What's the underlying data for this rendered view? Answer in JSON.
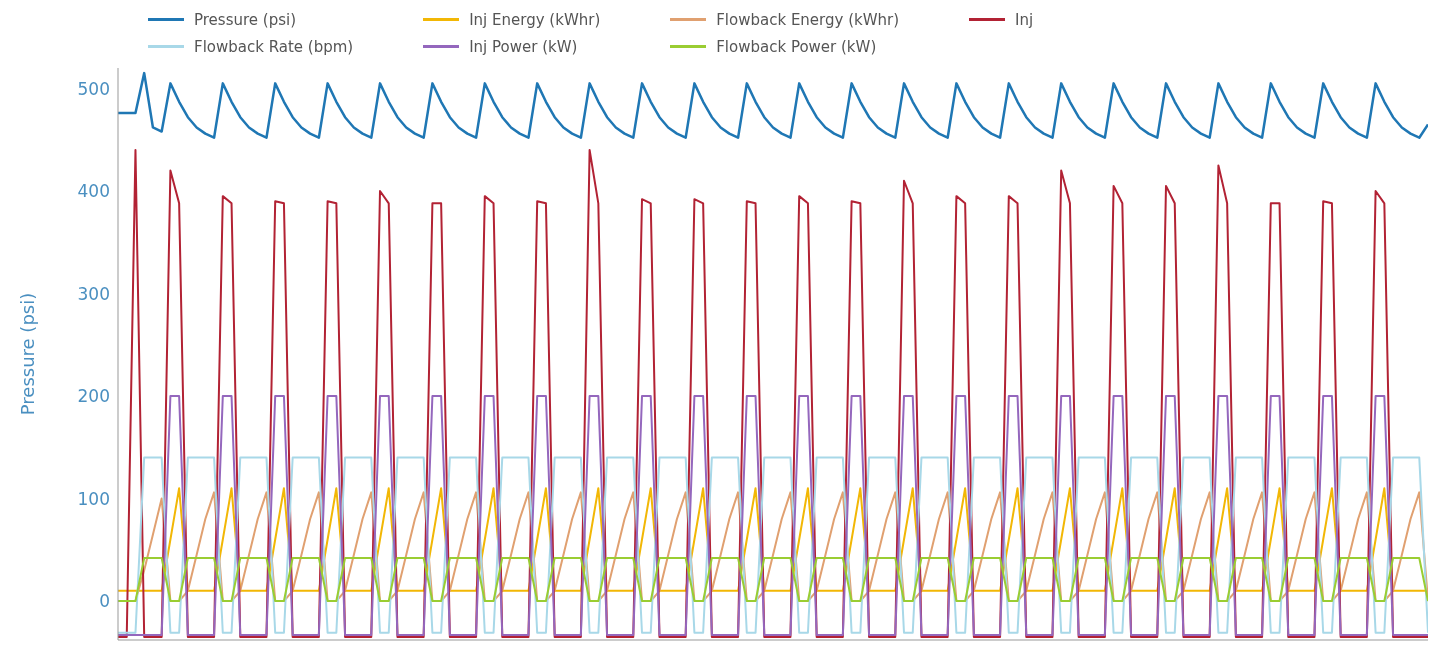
{
  "chart_data": {
    "type": "line",
    "ylabel": "Pressure (psi)",
    "ylim": [
      -38,
      520
    ],
    "yticks": [
      0,
      100,
      200,
      300,
      400,
      500
    ],
    "legend": "top",
    "tick_labels": "y",
    "categories": [
      null,
      null,
      null,
      null,
      null,
      null,
      null,
      null,
      null,
      null,
      null,
      null,
      null,
      null,
      null,
      null,
      null,
      null,
      null,
      null,
      null,
      null,
      null,
      null,
      null,
      null,
      null,
      null,
      null,
      null,
      null,
      null,
      null,
      null,
      null,
      null,
      null,
      null,
      null,
      null,
      null,
      null,
      null,
      null,
      null,
      null,
      null,
      null,
      null,
      null,
      null,
      null,
      null,
      null,
      null,
      null,
      null,
      null,
      null,
      null,
      null,
      null,
      null,
      null,
      null,
      null,
      null,
      null,
      null,
      null,
      null,
      null,
      null,
      null,
      null,
      null,
      null,
      null,
      null,
      null,
      null,
      null,
      null,
      null,
      null,
      null,
      null,
      null,
      null,
      null,
      null,
      null,
      null,
      null,
      null,
      null,
      null,
      null,
      null,
      null,
      null,
      null,
      null,
      null,
      null,
      null,
      null,
      null,
      null,
      null,
      null,
      null,
      null,
      null,
      null,
      null,
      null,
      null,
      null,
      null,
      null,
      null,
      null,
      null,
      null,
      null,
      null,
      null,
      null,
      null,
      null,
      null,
      null,
      null,
      null,
      null,
      null,
      null,
      null,
      null,
      null,
      null,
      null,
      null,
      null,
      null,
      null,
      null,
      null,
      null,
      null
    ],
    "series": [
      {
        "name": "Pressure (psi)",
        "color": "#1f77b4",
        "values": [
          476,
          476,
          476,
          515,
          462,
          458,
          505,
          487,
          472,
          462,
          456,
          452,
          505,
          487,
          472,
          462,
          456,
          452,
          505,
          487,
          472,
          462,
          456,
          452,
          505,
          487,
          472,
          462,
          456,
          452,
          505,
          487,
          472,
          462,
          456,
          452,
          505,
          487,
          472,
          462,
          456,
          452,
          505,
          487,
          472,
          462,
          456,
          452,
          505,
          487,
          472,
          462,
          456,
          452,
          505,
          487,
          472,
          462,
          456,
          452,
          505,
          487,
          472,
          462,
          456,
          452,
          505,
          487,
          472,
          462,
          456,
          452,
          505,
          487,
          472,
          462,
          456,
          452,
          505,
          487,
          472,
          462,
          456,
          452,
          505,
          487,
          472,
          462,
          456,
          452,
          505,
          487,
          472,
          462,
          456,
          452,
          505,
          487,
          472,
          462,
          456,
          452,
          505,
          487,
          472,
          462,
          456,
          452,
          505,
          487,
          472,
          462,
          456,
          452,
          505,
          487,
          472,
          462,
          456,
          452,
          505,
          487,
          472,
          462,
          456,
          452,
          505,
          487,
          472,
          462,
          456,
          452,
          505,
          487,
          472,
          462,
          456,
          452,
          505,
          487,
          472,
          462,
          456,
          452,
          505,
          487,
          472,
          462,
          456,
          452,
          465
        ]
      },
      {
        "name": "Inj Energy (kWhr)",
        "color": "#f2b705",
        "values": [
          10,
          10,
          10,
          10,
          10,
          10,
          60,
          110,
          10,
          10,
          10,
          10,
          60,
          110,
          10,
          10,
          10,
          10,
          60,
          110,
          10,
          10,
          10,
          10,
          60,
          110,
          10,
          10,
          10,
          10,
          60,
          110,
          10,
          10,
          10,
          10,
          60,
          110,
          10,
          10,
          10,
          10,
          60,
          110,
          10,
          10,
          10,
          10,
          60,
          110,
          10,
          10,
          10,
          10,
          60,
          110,
          10,
          10,
          10,
          10,
          60,
          110,
          10,
          10,
          10,
          10,
          60,
          110,
          10,
          10,
          10,
          10,
          60,
          110,
          10,
          10,
          10,
          10,
          60,
          110,
          10,
          10,
          10,
          10,
          60,
          110,
          10,
          10,
          10,
          10,
          60,
          110,
          10,
          10,
          10,
          10,
          60,
          110,
          10,
          10,
          10,
          10,
          60,
          110,
          10,
          10,
          10,
          10,
          60,
          110,
          10,
          10,
          10,
          10,
          60,
          110,
          10,
          10,
          10,
          10,
          60,
          110,
          10,
          10,
          10,
          10,
          60,
          110,
          10,
          10,
          10,
          10,
          60,
          110,
          10,
          10,
          10,
          10,
          60,
          110,
          10,
          10,
          10,
          10,
          60,
          110,
          10,
          10,
          10,
          10,
          10
        ]
      },
      {
        "name": "Flowback Energy (kWhr)",
        "color": "#e0a070",
        "values": [
          0,
          0,
          0,
          30,
          65,
          100,
          0,
          0,
          10,
          45,
          80,
          106,
          0,
          0,
          10,
          45,
          80,
          106,
          0,
          0,
          10,
          45,
          80,
          106,
          0,
          0,
          10,
          45,
          80,
          106,
          0,
          0,
          10,
          45,
          80,
          106,
          0,
          0,
          10,
          45,
          80,
          106,
          0,
          0,
          10,
          45,
          80,
          106,
          0,
          0,
          10,
          45,
          80,
          106,
          0,
          0,
          10,
          45,
          80,
          106,
          0,
          0,
          10,
          45,
          80,
          106,
          0,
          0,
          10,
          45,
          80,
          106,
          0,
          0,
          10,
          45,
          80,
          106,
          0,
          0,
          10,
          45,
          80,
          106,
          0,
          0,
          10,
          45,
          80,
          106,
          0,
          0,
          10,
          45,
          80,
          106,
          0,
          0,
          10,
          45,
          80,
          106,
          0,
          0,
          10,
          45,
          80,
          106,
          0,
          0,
          10,
          45,
          80,
          106,
          0,
          0,
          10,
          45,
          80,
          106,
          0,
          0,
          10,
          45,
          80,
          106,
          0,
          0,
          10,
          45,
          80,
          106,
          0,
          0,
          10,
          45,
          80,
          106,
          0,
          0,
          10,
          45,
          80,
          106,
          0,
          0,
          10,
          45,
          80,
          106,
          0
        ]
      },
      {
        "name": "Inj",
        "color": "#b22234",
        "values": [
          -35,
          -35,
          440,
          -35,
          -35,
          -35,
          420,
          388,
          -35,
          -35,
          -35,
          -35,
          395,
          388,
          -35,
          -35,
          -35,
          -35,
          390,
          388,
          -35,
          -35,
          -35,
          -35,
          390,
          388,
          -35,
          -35,
          -35,
          -35,
          400,
          388,
          -35,
          -35,
          -35,
          -35,
          388,
          388,
          -35,
          -35,
          -35,
          -35,
          395,
          388,
          -35,
          -35,
          -35,
          -35,
          390,
          388,
          -35,
          -35,
          -35,
          -35,
          440,
          388,
          -35,
          -35,
          -35,
          -35,
          392,
          388,
          -35,
          -35,
          -35,
          -35,
          392,
          388,
          -35,
          -35,
          -35,
          -35,
          390,
          388,
          -35,
          -35,
          -35,
          -35,
          395,
          388,
          -35,
          -35,
          -35,
          -35,
          390,
          388,
          -35,
          -35,
          -35,
          -35,
          410,
          388,
          -35,
          -35,
          -35,
          -35,
          395,
          388,
          -35,
          -35,
          -35,
          -35,
          395,
          388,
          -35,
          -35,
          -35,
          -35,
          420,
          388,
          -35,
          -35,
          -35,
          -35,
          405,
          388,
          -35,
          -35,
          -35,
          -35,
          405,
          388,
          -35,
          -35,
          -35,
          -35,
          425,
          388,
          -35,
          -35,
          -35,
          -35,
          388,
          388,
          -35,
          -35,
          -35,
          -35,
          390,
          388,
          -35,
          -35,
          -35,
          -35,
          400,
          388,
          -35,
          -35,
          -35,
          -35,
          -35
        ]
      },
      {
        "name": "Flowback Rate (bpm)",
        "color": "#a8d8e8",
        "values": [
          -31,
          -31,
          -31,
          140,
          140,
          140,
          -31,
          -31,
          140,
          140,
          140,
          140,
          -31,
          -31,
          140,
          140,
          140,
          140,
          -31,
          -31,
          140,
          140,
          140,
          140,
          -31,
          -31,
          140,
          140,
          140,
          140,
          -31,
          -31,
          140,
          140,
          140,
          140,
          -31,
          -31,
          140,
          140,
          140,
          140,
          -31,
          -31,
          140,
          140,
          140,
          140,
          -31,
          -31,
          140,
          140,
          140,
          140,
          -31,
          -31,
          140,
          140,
          140,
          140,
          -31,
          -31,
          140,
          140,
          140,
          140,
          -31,
          -31,
          140,
          140,
          140,
          140,
          -31,
          -31,
          140,
          140,
          140,
          140,
          -31,
          -31,
          140,
          140,
          140,
          140,
          -31,
          -31,
          140,
          140,
          140,
          140,
          -31,
          -31,
          140,
          140,
          140,
          140,
          -31,
          -31,
          140,
          140,
          140,
          140,
          -31,
          -31,
          140,
          140,
          140,
          140,
          -31,
          -31,
          140,
          140,
          140,
          140,
          -31,
          -31,
          140,
          140,
          140,
          140,
          -31,
          -31,
          140,
          140,
          140,
          140,
          -31,
          -31,
          140,
          140,
          140,
          140,
          -31,
          -31,
          140,
          140,
          140,
          140,
          -31,
          -31,
          140,
          140,
          140,
          140,
          -31,
          -31,
          140,
          140,
          140,
          140,
          -31
        ]
      },
      {
        "name": "Inj Power (kW)",
        "color": "#9467bd",
        "values": [
          -33,
          -33,
          -33,
          -33,
          -33,
          -33,
          200,
          200,
          -33,
          -33,
          -33,
          -33,
          200,
          200,
          -33,
          -33,
          -33,
          -33,
          200,
          200,
          -33,
          -33,
          -33,
          -33,
          200,
          200,
          -33,
          -33,
          -33,
          -33,
          200,
          200,
          -33,
          -33,
          -33,
          -33,
          200,
          200,
          -33,
          -33,
          -33,
          -33,
          200,
          200,
          -33,
          -33,
          -33,
          -33,
          200,
          200,
          -33,
          -33,
          -33,
          -33,
          200,
          200,
          -33,
          -33,
          -33,
          -33,
          200,
          200,
          -33,
          -33,
          -33,
          -33,
          200,
          200,
          -33,
          -33,
          -33,
          -33,
          200,
          200,
          -33,
          -33,
          -33,
          -33,
          200,
          200,
          -33,
          -33,
          -33,
          -33,
          200,
          200,
          -33,
          -33,
          -33,
          -33,
          200,
          200,
          -33,
          -33,
          -33,
          -33,
          200,
          200,
          -33,
          -33,
          -33,
          -33,
          200,
          200,
          -33,
          -33,
          -33,
          -33,
          200,
          200,
          -33,
          -33,
          -33,
          -33,
          200,
          200,
          -33,
          -33,
          -33,
          -33,
          200,
          200,
          -33,
          -33,
          -33,
          -33,
          200,
          200,
          -33,
          -33,
          -33,
          -33,
          200,
          200,
          -33,
          -33,
          -33,
          -33,
          200,
          200,
          -33,
          -33,
          -33,
          -33,
          200,
          200,
          -33,
          -33,
          -33,
          -33,
          -33
        ]
      },
      {
        "name": "Flowback Power (kW)",
        "color": "#9acd32",
        "values": [
          0,
          0,
          0,
          42,
          42,
          42,
          0,
          0,
          42,
          42,
          42,
          42,
          0,
          0,
          42,
          42,
          42,
          42,
          0,
          0,
          42,
          42,
          42,
          42,
          0,
          0,
          42,
          42,
          42,
          42,
          0,
          0,
          42,
          42,
          42,
          42,
          0,
          0,
          42,
          42,
          42,
          42,
          0,
          0,
          42,
          42,
          42,
          42,
          0,
          0,
          42,
          42,
          42,
          42,
          0,
          0,
          42,
          42,
          42,
          42,
          0,
          0,
          42,
          42,
          42,
          42,
          0,
          0,
          42,
          42,
          42,
          42,
          0,
          0,
          42,
          42,
          42,
          42,
          0,
          0,
          42,
          42,
          42,
          42,
          0,
          0,
          42,
          42,
          42,
          42,
          0,
          0,
          42,
          42,
          42,
          42,
          0,
          0,
          42,
          42,
          42,
          42,
          0,
          0,
          42,
          42,
          42,
          42,
          0,
          0,
          42,
          42,
          42,
          42,
          0,
          0,
          42,
          42,
          42,
          42,
          0,
          0,
          42,
          42,
          42,
          42,
          0,
          0,
          42,
          42,
          42,
          42,
          0,
          0,
          42,
          42,
          42,
          42,
          0,
          0,
          42,
          42,
          42,
          42,
          0,
          0,
          42,
          42,
          42,
          42,
          0
        ]
      }
    ]
  }
}
